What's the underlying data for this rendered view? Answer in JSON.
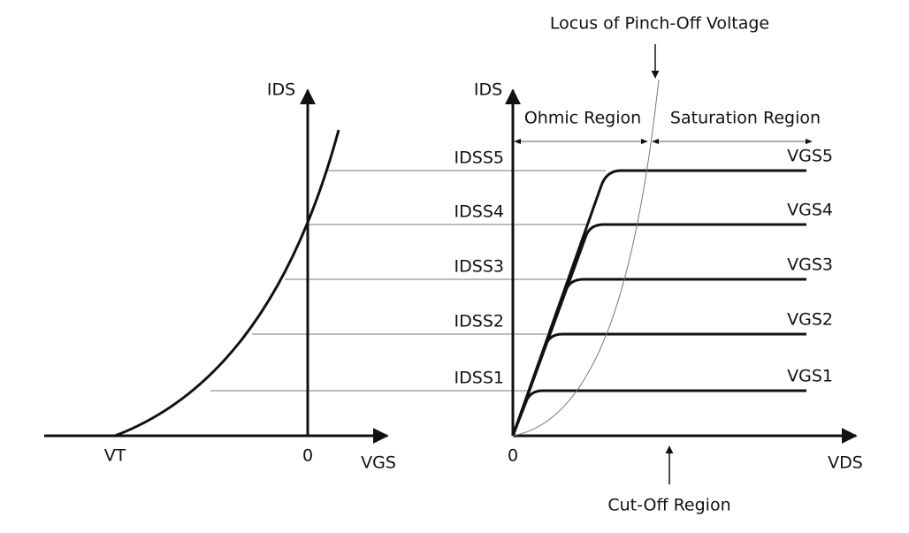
{
  "left_plot": {
    "y_label": "IDS",
    "x_label": "VGS",
    "origin_label": "0",
    "threshold_label": "VT"
  },
  "right_plot": {
    "y_label": "IDS",
    "x_label": "VDS",
    "origin_label": "0",
    "idss_labels": [
      "IDSS1",
      "IDSS2",
      "IDSS3",
      "IDSS4",
      "IDSS5"
    ],
    "vgs_labels": [
      "VGS1",
      "VGS2",
      "VGS3",
      "VGS4",
      "VGS5"
    ],
    "ohmic_region": "Ohmic Region",
    "saturation_region": "Saturation Region",
    "cutoff_region": "Cut-Off Region",
    "locus_label": "Locus of Pinch-Off Voltage"
  }
}
